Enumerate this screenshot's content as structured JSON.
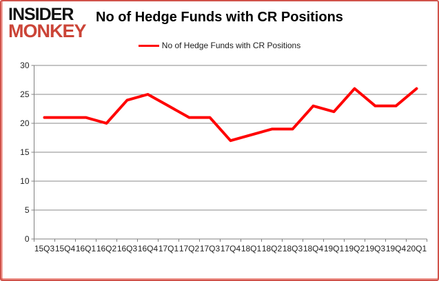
{
  "logo": {
    "line1": "INSIDER",
    "line2": "MONKEY"
  },
  "header": {
    "title": "No of Hedge Funds with CR Positions"
  },
  "legend": {
    "label": "No of Hedge Funds with CR Positions"
  },
  "colors": {
    "line": "#ff0000",
    "logo_black": "#111111",
    "logo_accent": "#cb4437",
    "grid": "#8a8a8a",
    "axis": "#7f7f7f",
    "frame_border": "#d0524a",
    "text": "#1f1f1f"
  },
  "chart_data": {
    "type": "line",
    "title": "No of Hedge Funds with CR Positions",
    "categories": [
      "15Q3",
      "15Q4",
      "16Q1",
      "16Q2",
      "16Q3",
      "16Q4",
      "17Q1",
      "17Q2",
      "17Q3",
      "17Q4",
      "18Q1",
      "18Q2",
      "18Q3",
      "18Q4",
      "19Q1",
      "19Q2",
      "19Q3",
      "19Q4",
      "20Q1"
    ],
    "series": [
      {
        "name": "No of Hedge Funds with CR Positions",
        "color": "#ff0000",
        "values": [
          21,
          21,
          21,
          20,
          24,
          25,
          23,
          21,
          21,
          17,
          18,
          19,
          19,
          23,
          22,
          26,
          23,
          23,
          26
        ]
      }
    ],
    "xlabel": "",
    "ylabel": "",
    "ylim": [
      0,
      30
    ],
    "ytick_step": 5,
    "yticks": [
      0,
      5,
      10,
      15,
      20,
      25,
      30
    ],
    "grid": true,
    "legend_position": "top-center"
  }
}
